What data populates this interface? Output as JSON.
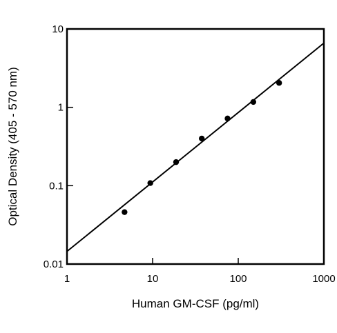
{
  "chart_data": {
    "type": "scatter",
    "title": "",
    "xlabel": "Human GM-CSF (pg/ml)",
    "ylabel": "Optical Density (405 - 570 nm)",
    "xscale": "log",
    "yscale": "log",
    "xlim": [
      1,
      1000
    ],
    "ylim": [
      0.01,
      10
    ],
    "x_ticks": [
      1,
      10,
      100,
      1000
    ],
    "x_tick_labels": [
      "1",
      "10",
      "100",
      "1000"
    ],
    "y_ticks": [
      0.01,
      0.1,
      1,
      10
    ],
    "y_tick_labels": [
      "0.01",
      "0.1",
      "1",
      "10"
    ],
    "grid": false,
    "legend": "none",
    "series": [
      {
        "type": "scatter",
        "x": [
          4.7,
          9.4,
          18.8,
          37.5,
          75,
          150,
          300
        ],
        "y": [
          0.046,
          0.108,
          0.2,
          0.4,
          0.72,
          1.17,
          2.05
        ]
      },
      {
        "type": "line",
        "fit": "linear-log-log",
        "x": [
          1,
          1000
        ],
        "y": [
          0.0145,
          6.6
        ]
      }
    ],
    "colors": {
      "marker": "#000000",
      "line": "#000000",
      "axis": "#000000"
    }
  }
}
